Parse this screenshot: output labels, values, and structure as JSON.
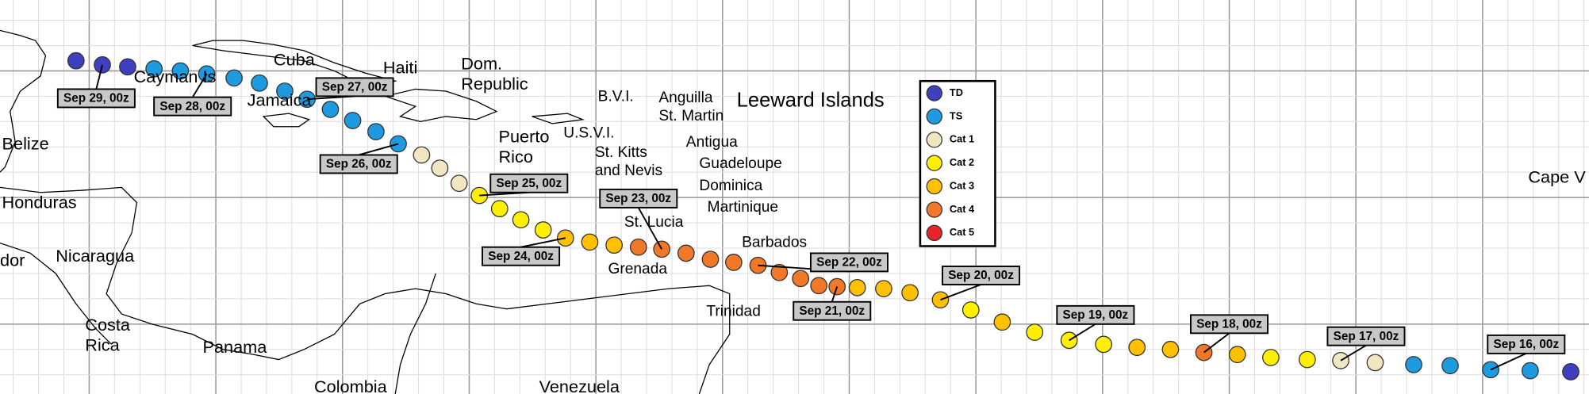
{
  "places": [
    {
      "lines": [
        "Belize"
      ]
    },
    {
      "lines": [
        "Honduras"
      ]
    },
    {
      "lines": [
        "dor"
      ]
    },
    {
      "lines": [
        "Nicaragua"
      ]
    },
    {
      "lines": [
        "Costa",
        "Rica"
      ]
    },
    {
      "lines": [
        "Panama"
      ]
    },
    {
      "lines": [
        "Colombia"
      ]
    },
    {
      "lines": [
        "Cayman Is"
      ]
    },
    {
      "lines": [
        "Cuba"
      ]
    },
    {
      "lines": [
        "Jamaica"
      ]
    },
    {
      "lines": [
        "Haiti"
      ]
    },
    {
      "lines": [
        "Dom.",
        "Republic"
      ]
    },
    {
      "lines": [
        "Puerto",
        "Rico"
      ]
    },
    {
      "lines": [
        "B.V.I."
      ]
    },
    {
      "lines": [
        "U.S.V.I."
      ]
    },
    {
      "lines": [
        "St. Kitts",
        "and Nevis"
      ]
    },
    {
      "lines": [
        "Anguilla",
        "St. Martin"
      ]
    },
    {
      "lines": [
        "Antigua"
      ]
    },
    {
      "lines": [
        "Guadeloupe"
      ]
    },
    {
      "lines": [
        "Dominica"
      ]
    },
    {
      "lines": [
        "Martinique"
      ]
    },
    {
      "lines": [
        "St. Lucia"
      ]
    },
    {
      "lines": [
        "Barbados"
      ]
    },
    {
      "lines": [
        "Grenada"
      ]
    },
    {
      "lines": [
        "Trinidad"
      ]
    },
    {
      "lines": [
        "Venezuela"
      ]
    },
    {
      "lines": [
        "Leeward Islands"
      ]
    },
    {
      "lines": [
        "Cape V"
      ]
    }
  ],
  "date_labels": [
    "Sep 29, 00z",
    "Sep 28, 00z",
    "Sep 27, 00z",
    "Sep 26, 00z",
    "Sep 25, 00z",
    "Sep 24, 00z",
    "Sep 23, 00z",
    "Sep 22, 00z",
    "Sep 21, 00z",
    "Sep 20, 00z",
    "Sep 19, 00z",
    "Sep 18, 00z",
    "Sep 17, 00z",
    "Sep 16, 00z"
  ],
  "legend": [
    {
      "name": "TD",
      "color": "#3f3fbf"
    },
    {
      "name": "TS",
      "color": "#1e9be0"
    },
    {
      "name": "Cat 1",
      "color": "#f2e6c0"
    },
    {
      "name": "Cat 2",
      "color": "#ffef00"
    },
    {
      "name": "Cat 3",
      "color": "#ffc000"
    },
    {
      "name": "Cat 4",
      "color": "#f07828"
    },
    {
      "name": "Cat 5",
      "color": "#e8232a"
    }
  ]
}
